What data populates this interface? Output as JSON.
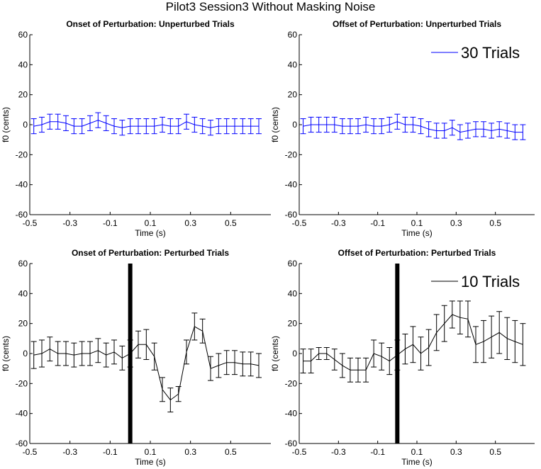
{
  "title": "Pilot3 Session3 Without Masking Noise",
  "chart_data": [
    {
      "type": "line",
      "title": "Onset of Perturbation: Unperturbed Trials",
      "xlabel": "Time (s)",
      "ylabel": "f0 (cents)",
      "xlim": [
        -0.5,
        0.7
      ],
      "ylim": [
        -60,
        60
      ],
      "xticks": [
        "-0.5",
        "-0.3",
        "-0.1",
        "0.1",
        "0.3",
        "0.5"
      ],
      "yticks": [
        "-60",
        "-40",
        "-20",
        "0",
        "20",
        "40",
        "60"
      ],
      "color": "#0000ff",
      "legend": "",
      "marker_line": null,
      "series": [
        {
          "x": [
            -0.48,
            -0.44,
            -0.4,
            -0.36,
            -0.32,
            -0.28,
            -0.24,
            -0.2,
            -0.16,
            -0.12,
            -0.08,
            -0.04,
            0.0,
            0.04,
            0.08,
            0.12,
            0.16,
            0.2,
            0.24,
            0.28,
            0.32,
            0.36,
            0.4,
            0.44,
            0.48,
            0.52,
            0.56,
            0.6,
            0.64
          ],
          "values": [
            -1,
            0,
            2,
            2,
            1,
            -1,
            -1,
            1,
            3,
            1,
            -1,
            -2,
            -1,
            -1,
            -1,
            -1,
            0,
            -1,
            -1,
            2,
            0,
            -1,
            -2,
            -1,
            -1,
            -1,
            -1,
            -1,
            -1
          ],
          "error": [
            5,
            5,
            5,
            5,
            5,
            5,
            5,
            5,
            5,
            5,
            5,
            5,
            5,
            5,
            5,
            5,
            5,
            5,
            5,
            5,
            5,
            5,
            5,
            5,
            5,
            5,
            5,
            5,
            5
          ]
        }
      ]
    },
    {
      "type": "line",
      "title": "Offset of Perturbation: Unperturbed Trials",
      "xlabel": "Time (s)",
      "ylabel": "f0 (cents)",
      "xlim": [
        -0.5,
        0.7
      ],
      "ylim": [
        -60,
        60
      ],
      "xticks": [
        "-0.5",
        "-0.3",
        "-0.1",
        "0.1",
        "0.3",
        "0.5"
      ],
      "yticks": [
        "-60",
        "-40",
        "-20",
        "0",
        "20",
        "40",
        "60"
      ],
      "color": "#0000ff",
      "legend": "30 Trials",
      "marker_line": null,
      "series": [
        {
          "x": [
            -0.48,
            -0.44,
            -0.4,
            -0.36,
            -0.32,
            -0.28,
            -0.24,
            -0.2,
            -0.16,
            -0.12,
            -0.08,
            -0.04,
            0.0,
            0.04,
            0.08,
            0.12,
            0.16,
            0.2,
            0.24,
            0.28,
            0.32,
            0.36,
            0.4,
            0.44,
            0.48,
            0.52,
            0.56,
            0.6,
            0.64
          ],
          "values": [
            -1,
            0,
            0,
            0,
            0,
            -1,
            -1,
            -1,
            0,
            -1,
            -1,
            0,
            2,
            0,
            0,
            -1,
            -3,
            -4,
            -4,
            -2,
            -5,
            -4,
            -3,
            -3,
            -4,
            -3,
            -4,
            -5,
            -5
          ],
          "error": [
            5,
            5,
            5,
            5,
            5,
            5,
            5,
            5,
            5,
            5,
            5,
            5,
            5,
            5,
            5,
            5,
            5,
            5,
            5,
            5,
            5,
            5,
            5,
            5,
            5,
            5,
            5,
            5,
            5
          ]
        }
      ]
    },
    {
      "type": "line",
      "title": "Onset of Perturbation: Perturbed Trials",
      "xlabel": "Time (s)",
      "ylabel": "f0 (cents)",
      "xlim": [
        -0.5,
        0.7
      ],
      "ylim": [
        -60,
        60
      ],
      "xticks": [
        "-0.5",
        "-0.3",
        "-0.1",
        "0.1",
        "0.3",
        "0.5"
      ],
      "yticks": [
        "-60",
        "-40",
        "-20",
        "0",
        "20",
        "40",
        "60"
      ],
      "color": "#000000",
      "legend": "",
      "marker_line": 0.0,
      "series": [
        {
          "x": [
            -0.48,
            -0.44,
            -0.4,
            -0.36,
            -0.32,
            -0.28,
            -0.24,
            -0.2,
            -0.16,
            -0.12,
            -0.08,
            -0.04,
            0.0,
            0.04,
            0.08,
            0.12,
            0.16,
            0.2,
            0.24,
            0.28,
            0.32,
            0.36,
            0.4,
            0.44,
            0.48,
            0.52,
            0.56,
            0.6,
            0.64
          ],
          "values": [
            -1,
            0,
            3,
            0,
            0,
            -1,
            0,
            0,
            2,
            -1,
            1,
            -3,
            0,
            6,
            6,
            -2,
            -24,
            -31,
            -27,
            1,
            18,
            15,
            -10,
            -8,
            -6,
            -6,
            -7,
            -7,
            -8
          ],
          "error": [
            9,
            9,
            8,
            8,
            8,
            8,
            8,
            8,
            8,
            8,
            8,
            8,
            9,
            9,
            10,
            9,
            8,
            8,
            5,
            8,
            9,
            8,
            8,
            8,
            8,
            8,
            8,
            8,
            8
          ]
        }
      ]
    },
    {
      "type": "line",
      "title": "Offset of Perturbation: Perturbed Trials",
      "xlabel": "Time (s)",
      "ylabel": "f0 (cents)",
      "xlim": [
        -0.5,
        0.7
      ],
      "ylim": [
        -60,
        60
      ],
      "xticks": [
        "-0.5",
        "-0.3",
        "-0.1",
        "0.1",
        "0.3",
        "0.5"
      ],
      "yticks": [
        "-60",
        "-40",
        "-20",
        "0",
        "20",
        "40",
        "60"
      ],
      "color": "#000000",
      "legend": "10 Trials",
      "marker_line": 0.0,
      "series": [
        {
          "x": [
            -0.48,
            -0.44,
            -0.4,
            -0.36,
            -0.32,
            -0.28,
            -0.24,
            -0.2,
            -0.16,
            -0.12,
            -0.08,
            -0.04,
            0.0,
            0.04,
            0.08,
            0.12,
            0.16,
            0.2,
            0.24,
            0.28,
            0.32,
            0.36,
            0.4,
            0.44,
            0.48,
            0.52,
            0.56,
            0.6,
            0.64
          ],
          "values": [
            -5,
            -5,
            0,
            0,
            -4,
            -8,
            -11,
            -11,
            -11,
            0,
            -2,
            -5,
            -1,
            3,
            6,
            0,
            4,
            14,
            20,
            26,
            24,
            23,
            6,
            8,
            11,
            14,
            10,
            8,
            6
          ],
          "error": [
            8,
            8,
            4,
            4,
            7,
            8,
            8,
            8,
            8,
            9,
            9,
            9,
            10,
            10,
            12,
            11,
            12,
            12,
            12,
            9,
            11,
            12,
            12,
            14,
            14,
            14,
            14,
            14,
            14
          ]
        }
      ]
    }
  ]
}
